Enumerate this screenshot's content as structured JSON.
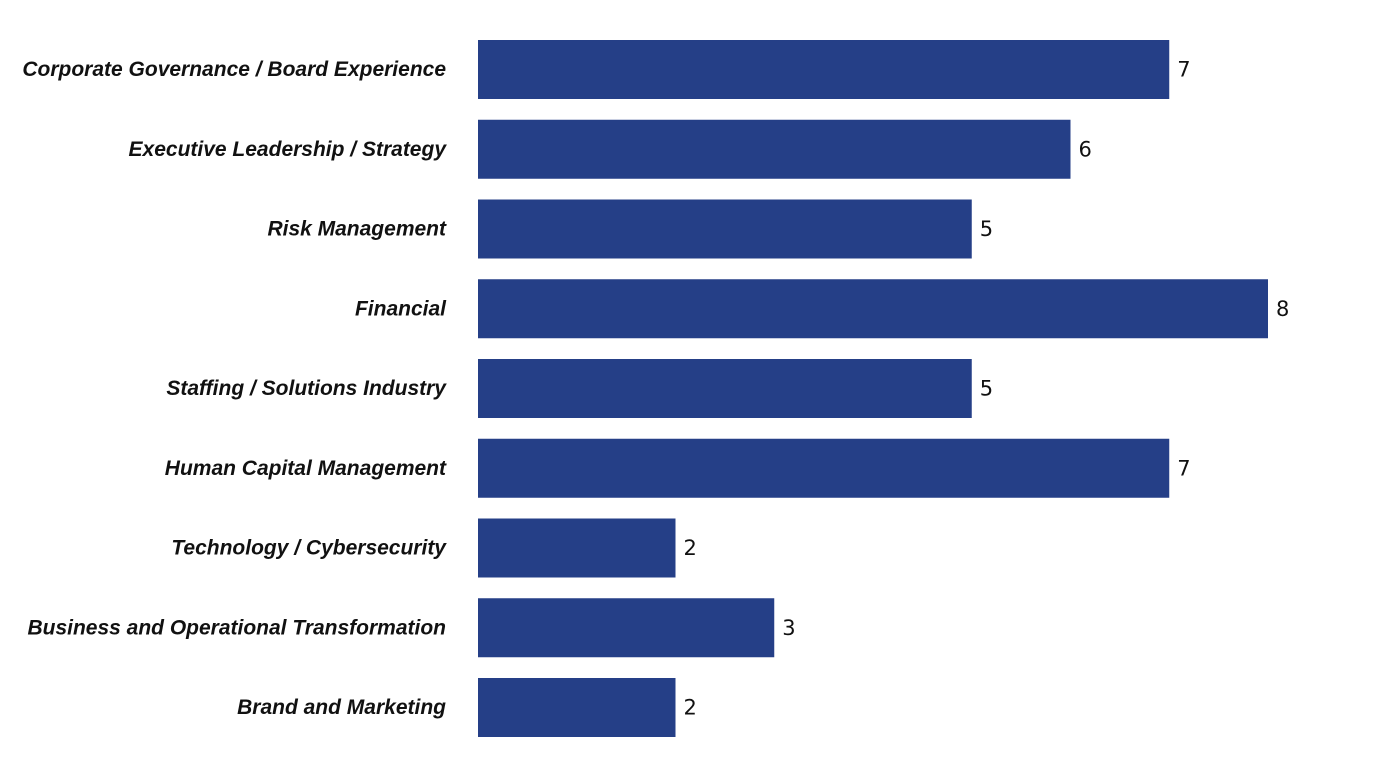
{
  "chart_data": {
    "type": "bar",
    "orientation": "horizontal",
    "title": "",
    "xlabel": "",
    "ylabel": "",
    "grid": false,
    "legend": "none",
    "xlim": [
      0,
      8
    ],
    "bar_color": "#253f87",
    "categories": [
      "Corporate Governance / Board Experience",
      "Executive Leadership / Strategy",
      "Risk Management",
      "Financial",
      "Staffing / Solutions Industry",
      "Human Capital Management",
      "Technology / Cybersecurity",
      "Business and Operational Transformation",
      "Brand and Marketing"
    ],
    "values": [
      7,
      6,
      5,
      8,
      5,
      7,
      2,
      3,
      2
    ]
  }
}
